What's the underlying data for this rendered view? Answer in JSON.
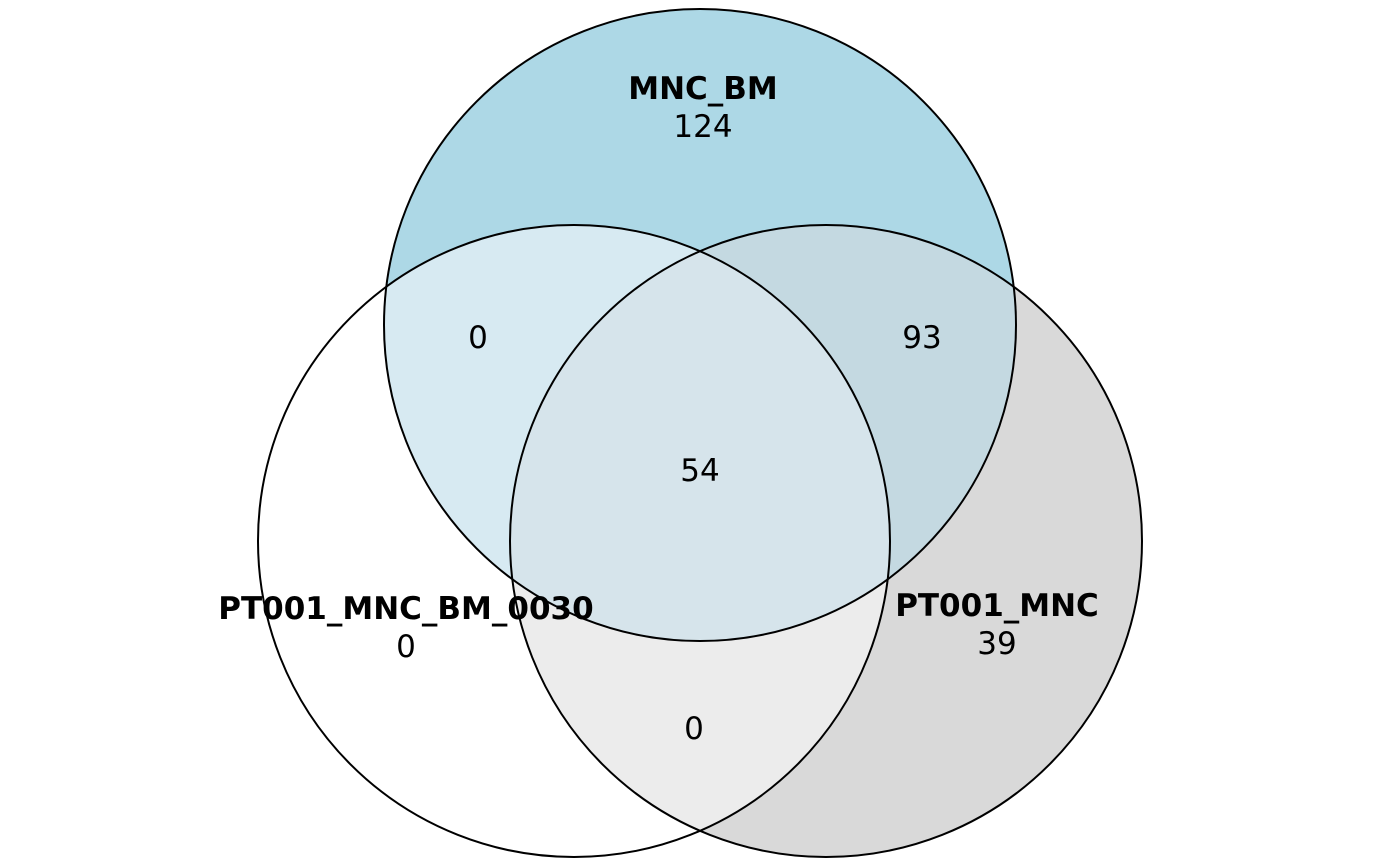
{
  "sets": [
    {
      "id": "mnc_bm",
      "name": "MNC_BM",
      "only_count": "124",
      "color": "#add8e6"
    },
    {
      "id": "pt001_mnc_bm_0030",
      "name": "PT001_MNC_BM_0030",
      "only_count": "0",
      "color": "#ffffff"
    },
    {
      "id": "pt001_mnc",
      "name": "PT001_MNC",
      "only_count": "39",
      "color": "#d9d9d9"
    }
  ],
  "intersections": {
    "mnc_bm_and_pt001_mnc_bm_0030": "0",
    "mnc_bm_and_pt001_mnc": "93",
    "pt001_mnc_bm_0030_and_pt001_mnc": "0",
    "all_three": "54"
  },
  "colors": {
    "outline": "#000000",
    "top_left_overlap": "#d7eaf2",
    "top_right_overlap": "#c4d9e1",
    "center_overlap": "#d6e4eb",
    "bottom_overlap": "#ececec"
  }
}
